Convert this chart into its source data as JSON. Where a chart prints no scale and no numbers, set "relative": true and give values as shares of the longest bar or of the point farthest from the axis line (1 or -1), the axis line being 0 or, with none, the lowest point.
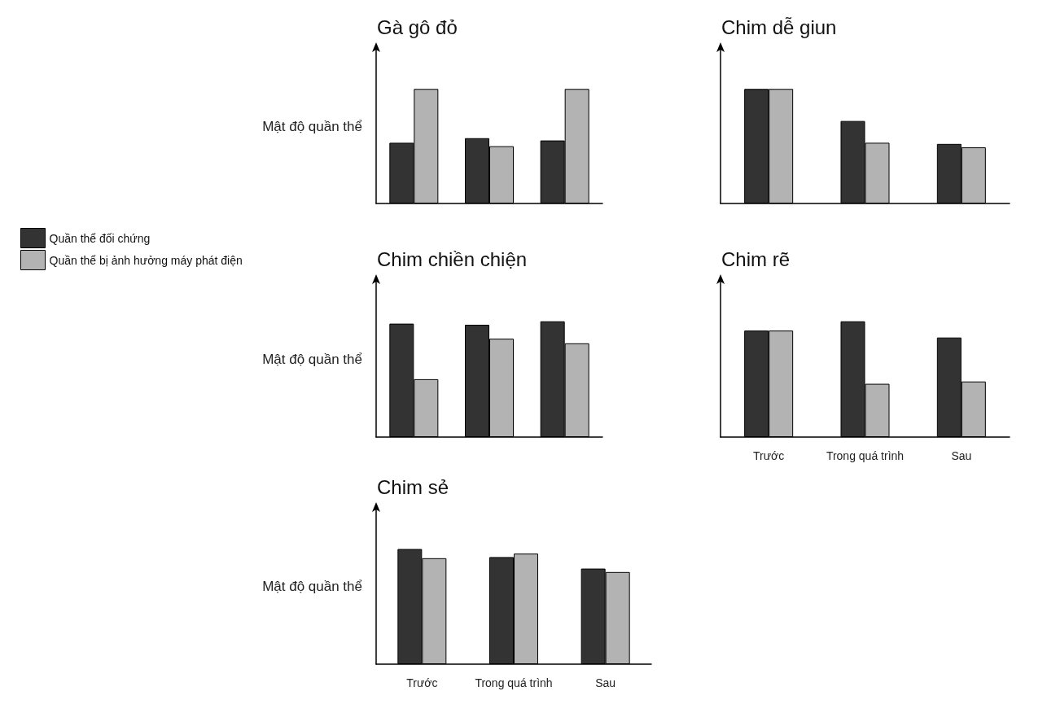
{
  "chart_data": [
    {
      "type": "bar",
      "title": "Gà gô đỏ",
      "ylabel": "Mật độ quần thể",
      "relative": true,
      "categories": [
        null,
        null,
        null
      ],
      "series": [
        {
          "color": "#333333",
          "values": [
            0.53,
            0.57,
            0.55
          ]
        },
        {
          "color": "#b3b3b3",
          "values": [
            1,
            0.5,
            1
          ]
        }
      ]
    },
    {
      "type": "bar",
      "title": "Chim dễ giun",
      "relative": true,
      "categories": [
        null,
        null,
        null
      ],
      "series": [
        {
          "color": "#333333",
          "values": [
            1,
            0.72,
            0.52
          ]
        },
        {
          "color": "#b3b3b3",
          "values": [
            1,
            0.53,
            0.49
          ]
        }
      ]
    },
    {
      "type": "bar",
      "title": "Chim chiền chiện",
      "ylabel": "Mật độ quần thể",
      "relative": true,
      "legend": "left",
      "categories": [
        null,
        null,
        null
      ],
      "series": [
        {
          "name": "Quần thể đối chứng",
          "color": "#333333",
          "values": [
            0.98,
            0.97,
            1
          ]
        },
        {
          "name": "Quần thể bị ảnh hưởng máy phát điện",
          "color": "#b3b3b3",
          "values": [
            0.5,
            0.85,
            0.81
          ]
        }
      ]
    },
    {
      "type": "bar",
      "title": "Chim rẽ",
      "relative": true,
      "categories": [
        "Trước",
        "Trong quá trình",
        "Sau"
      ],
      "series": [
        {
          "color": "#333333",
          "values": [
            0.92,
            1,
            0.86
          ]
        },
        {
          "color": "#b3b3b3",
          "values": [
            0.92,
            0.46,
            0.48
          ]
        }
      ]
    },
    {
      "type": "bar",
      "title": "Chim sẻ",
      "ylabel": "Mật độ quần thể",
      "relative": true,
      "categories": [
        "Trước",
        "Trong quá trình",
        "Sau"
      ],
      "series": [
        {
          "color": "#333333",
          "values": [
            1,
            0.93,
            0.83
          ]
        },
        {
          "color": "#b3b3b3",
          "values": [
            0.92,
            0.96,
            0.8
          ]
        }
      ]
    }
  ]
}
